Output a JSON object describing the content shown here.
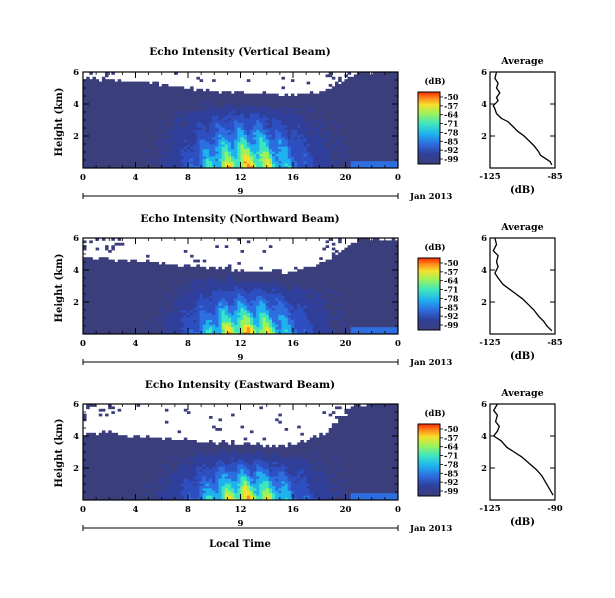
{
  "figure": {
    "ylabel": "Height (km)",
    "xlabel": "Local Time",
    "date_label": "Jan 2013",
    "day_label": "9",
    "colorbar_label": "(dB)",
    "colorbar_ticks": [
      "-50",
      "-57",
      "-64",
      "-71",
      "-78",
      "-85",
      "-92",
      "-99"
    ],
    "colorbar_colors": [
      "#ff2a00",
      "#ff8f1f",
      "#f5e12e",
      "#9df25a",
      "#3ee6c0",
      "#1fb2ee",
      "#2d6ee0",
      "#2f3f9a",
      "#3a3f7c"
    ],
    "avg_title": "Average",
    "avg_xlabel": "(dB)"
  },
  "chart_data": [
    {
      "type": "heatmap",
      "title": "Echo Intensity (Vertical Beam)",
      "x_ticks": [
        "0",
        "4",
        "8",
        "12",
        "16",
        "20",
        "0"
      ],
      "y_ticks": [
        "6",
        "4",
        "2"
      ],
      "xlim": [
        0,
        24
      ],
      "ylim": [
        0,
        6
      ],
      "color_range": [
        -99,
        -50
      ],
      "profile": {
        "title": "Average",
        "xlim": [
          -125,
          -85
        ],
        "x_ticks": [
          "-125",
          "-85"
        ],
        "y_ticks": [
          "6",
          "4",
          "2"
        ],
        "points": [
          [
            -121,
            6
          ],
          [
            -122,
            5.6
          ],
          [
            -120,
            5.3
          ],
          [
            -121,
            5.0
          ],
          [
            -119,
            4.7
          ],
          [
            -121,
            4.4
          ],
          [
            -120,
            4.2
          ],
          [
            -123,
            3.9
          ],
          [
            -122,
            3.7
          ],
          [
            -121,
            3.4
          ],
          [
            -118,
            3.1
          ],
          [
            -114,
            2.9
          ],
          [
            -111,
            2.6
          ],
          [
            -108,
            2.3
          ],
          [
            -104,
            2.0
          ],
          [
            -101,
            1.7
          ],
          [
            -98,
            1.4
          ],
          [
            -95,
            1.0
          ],
          [
            -94,
            0.8
          ],
          [
            -91,
            0.6
          ],
          [
            -88,
            0.4
          ],
          [
            -87,
            0.2
          ]
        ]
      },
      "fields": {
        "top": [
          5.6,
          5.6,
          5.5,
          5.4,
          5.4,
          5.3,
          5.2,
          5.1,
          5.0,
          4.9,
          4.8,
          4.8,
          4.7,
          4.7,
          4.6,
          4.6,
          4.6,
          4.6,
          4.7,
          5.0,
          5.5,
          6.0,
          6.0,
          6.0,
          6.0
        ]
      }
    },
    {
      "type": "heatmap",
      "title": "Echo Intensity (Northward Beam)",
      "x_ticks": [
        "0",
        "4",
        "8",
        "12",
        "16",
        "20",
        "0"
      ],
      "y_ticks": [
        "6",
        "4",
        "2"
      ],
      "xlim": [
        0,
        24
      ],
      "ylim": [
        0,
        6
      ],
      "color_range": [
        -99,
        -50
      ],
      "profile": {
        "title": "Average",
        "xlim": [
          -125,
          -85
        ],
        "x_ticks": [
          "-125",
          "-85"
        ],
        "y_ticks": [
          "6",
          "4",
          "2"
        ],
        "points": [
          [
            -122,
            6
          ],
          [
            -121,
            5.6
          ],
          [
            -123,
            5.2
          ],
          [
            -120,
            4.9
          ],
          [
            -121,
            4.5
          ],
          [
            -120,
            4.2
          ],
          [
            -122,
            3.8
          ],
          [
            -120,
            3.5
          ],
          [
            -117,
            3.1
          ],
          [
            -113,
            2.8
          ],
          [
            -109,
            2.5
          ],
          [
            -105,
            2.2
          ],
          [
            -101,
            1.8
          ],
          [
            -98,
            1.5
          ],
          [
            -95,
            1.1
          ],
          [
            -92,
            0.8
          ],
          [
            -90,
            0.5
          ],
          [
            -87,
            0.2
          ]
        ]
      },
      "fields": {
        "top": [
          4.8,
          4.8,
          4.7,
          4.6,
          4.6,
          4.5,
          4.4,
          4.3,
          4.3,
          4.2,
          4.1,
          4.1,
          4.0,
          4.0,
          3.9,
          3.9,
          3.9,
          4.0,
          4.3,
          4.8,
          5.4,
          6.0,
          6.0,
          6.0,
          6.0
        ]
      }
    },
    {
      "type": "heatmap",
      "title": "Echo Intensity (Eastward Beam)",
      "x_ticks": [
        "0",
        "4",
        "8",
        "12",
        "16",
        "20",
        "0"
      ],
      "y_ticks": [
        "6",
        "4",
        "2"
      ],
      "xlim": [
        0,
        24
      ],
      "ylim": [
        0,
        6
      ],
      "color_range": [
        -99,
        -50
      ],
      "profile": {
        "title": "Average",
        "xlim": [
          -125,
          -90
        ],
        "x_ticks": [
          "-125",
          "-90"
        ],
        "y_ticks": [
          "6",
          "4",
          "2"
        ],
        "points": [
          [
            -121,
            6
          ],
          [
            -123,
            5.6
          ],
          [
            -121,
            5.3
          ],
          [
            -122,
            4.9
          ],
          [
            -120,
            4.6
          ],
          [
            -121,
            4.3
          ],
          [
            -123,
            4.0
          ],
          [
            -119,
            3.7
          ],
          [
            -116,
            3.3
          ],
          [
            -112,
            3.0
          ],
          [
            -108,
            2.7
          ],
          [
            -104,
            2.3
          ],
          [
            -100,
            1.9
          ],
          [
            -97,
            1.5
          ],
          [
            -95,
            1.1
          ],
          [
            -93,
            0.7
          ],
          [
            -91,
            0.3
          ]
        ]
      },
      "fields": {
        "top": [
          4.1,
          4.2,
          4.2,
          4.1,
          4.0,
          4.0,
          3.9,
          3.8,
          3.7,
          3.7,
          3.6,
          3.6,
          3.5,
          3.5,
          3.4,
          3.4,
          3.5,
          3.7,
          4.0,
          4.6,
          5.3,
          6.0,
          6.0,
          6.0,
          6.0
        ]
      }
    }
  ]
}
